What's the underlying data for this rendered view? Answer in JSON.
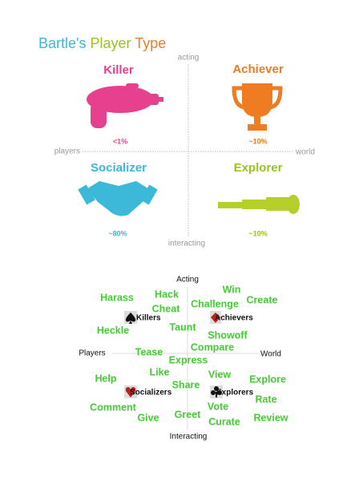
{
  "header": {
    "title_parts": [
      "Bartle's",
      "Player",
      "Type"
    ]
  },
  "top": {
    "axes": {
      "acting": "acting",
      "players": "players",
      "world": "world",
      "interacting": "interacting"
    },
    "types": [
      {
        "name": "Killer",
        "share": "<1%"
      },
      {
        "name": "Achiever",
        "share": "~10%"
      },
      {
        "name": "Socializer",
        "share": "~80%"
      },
      {
        "name": "Explorer",
        "share": "~10%"
      }
    ]
  },
  "bottom": {
    "axes": {
      "acting": "Acting",
      "players": "Players",
      "world": "World",
      "interacting": "Interacting"
    },
    "types": [
      "Killers",
      "Achievers",
      "Socializers",
      "Explorers"
    ],
    "words": [
      "Harass",
      "Hack",
      "Win",
      "Create",
      "Cheat",
      "Challenge",
      "Heckle",
      "Taunt",
      "Showoff",
      "Compare",
      "Tease",
      "Express",
      "Like",
      "View",
      "Explore",
      "Help",
      "Share",
      "Rate",
      "Comment",
      "Vote",
      "Give",
      "Greet",
      "Curate",
      "Review"
    ]
  }
}
